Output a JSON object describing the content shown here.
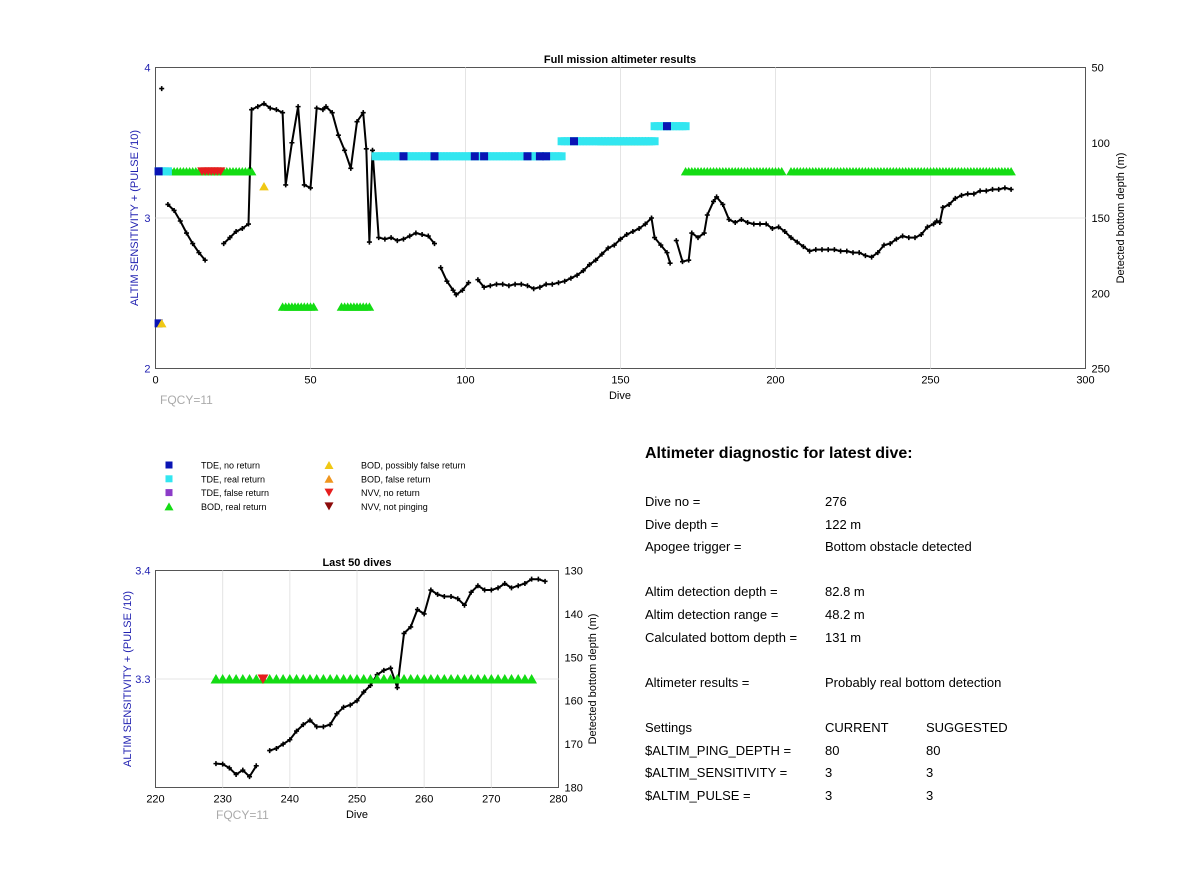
{
  "main_chart": {
    "title": "Full mission altimeter results",
    "xlabel": "Dive",
    "ylabel_left": "ALTIM SENSITIVITY + (PULSE /10)",
    "ylabel_right": "Detected bottom depth (m)",
    "fqcy": "FQCY=11",
    "x_ticks": [
      "0",
      "50",
      "100",
      "150",
      "200",
      "250",
      "300"
    ],
    "y_left_ticks": [
      "2",
      "3",
      "4"
    ],
    "y_right_ticks": [
      "50",
      "100",
      "150",
      "200",
      "250"
    ]
  },
  "zoom_chart": {
    "title": "Last 50 dives",
    "xlabel": "Dive",
    "ylabel_left": "ALTIM SENSITIVITY + (PULSE /10)",
    "ylabel_right": "Detected bottom depth (m)",
    "fqcy": "FQCY=11",
    "x_ticks": [
      "220",
      "230",
      "240",
      "250",
      "260",
      "270",
      "280"
    ],
    "y_left_ticks": [
      "3.3",
      "3.4"
    ],
    "y_right_ticks": [
      "130",
      "140",
      "150",
      "160",
      "170",
      "180"
    ]
  },
  "legend": [
    {
      "label": "TDE, no return",
      "marker": "square",
      "color": "#0a14b4"
    },
    {
      "label": "TDE, real return",
      "marker": "square",
      "color": "#32e6f0"
    },
    {
      "label": "TDE, false return",
      "marker": "square",
      "color": "#8c3cc8"
    },
    {
      "label": "BOD, real return",
      "marker": "triangle-up",
      "color": "#14dc14"
    },
    {
      "label": "BOD, possibly false return",
      "marker": "triangle-up",
      "color": "#f0c814"
    },
    {
      "label": "BOD, false return",
      "marker": "triangle-up",
      "color": "#f0961e"
    },
    {
      "label": "NVV, no return",
      "marker": "triangle-down",
      "color": "#e61e1e"
    },
    {
      "label": "NVV, not pinging",
      "marker": "triangle-down",
      "color": "#8c0a0a"
    }
  ],
  "diagnostic": {
    "heading": "Altimeter diagnostic for latest dive:",
    "dive_no_label": "Dive no =",
    "dive_no": "276",
    "dive_depth_label": "Dive depth =",
    "dive_depth": "122 m",
    "apogee_label": "Apogee trigger =",
    "apogee": "Bottom obstacle detected",
    "det_depth_label": "Altim detection depth =",
    "det_depth": "82.8 m",
    "det_range_label": "Altim detection range =",
    "det_range": "48.2 m",
    "calc_depth_label": "Calculated bottom depth =",
    "calc_depth": "131 m",
    "results_label": "Altimeter results =",
    "results": "Probably real bottom detection",
    "settings_label": "Settings",
    "current_label": "CURRENT",
    "suggested_label": "SUGGESTED",
    "ping_label": "$ALTIM_PING_DEPTH =",
    "ping_current": "80",
    "ping_suggested": "80",
    "sens_label": "$ALTIM_SENSITIVITY =",
    "sens_current": "3",
    "sens_suggested": "3",
    "pulse_label": "$ALTIM_PULSE =",
    "pulse_current": "3",
    "pulse_suggested": "3"
  },
  "chart_data": [
    {
      "type": "line",
      "title": "Full mission altimeter results",
      "xlabel": "Dive",
      "ylabel": "ALTIM SENSITIVITY + (PULSE /10)",
      "ylabel_right": "Detected bottom depth (m)",
      "xlim": [
        0,
        300
      ],
      "ylim": [
        2,
        4
      ],
      "ylim_right": [
        250,
        50
      ],
      "grid": true,
      "depth_series": {
        "name": "Detected bottom depth (m)",
        "segments": [
          [
            [
              2,
              64
            ]
          ],
          [
            [
              4,
              141
            ],
            [
              6,
              145
            ],
            [
              8,
              152
            ],
            [
              10,
              160
            ],
            [
              12,
              167
            ],
            [
              14,
              173
            ],
            [
              16,
              178
            ]
          ],
          [
            [
              22,
              167
            ],
            [
              24,
              163
            ],
            [
              26,
              159
            ],
            [
              28,
              157
            ],
            [
              30,
              154
            ],
            [
              31,
              78
            ],
            [
              33,
              76
            ],
            [
              35,
              74
            ],
            [
              37,
              77
            ],
            [
              39,
              78
            ],
            [
              41,
              80
            ],
            [
              42,
              128
            ],
            [
              44,
              100
            ],
            [
              46,
              76
            ],
            [
              48,
              128
            ],
            [
              50,
              130
            ],
            [
              52,
              77
            ],
            [
              54,
              78
            ],
            [
              55,
              76
            ],
            [
              57,
              80
            ],
            [
              59,
              95
            ],
            [
              61,
              105
            ],
            [
              63,
              117
            ],
            [
              65,
              86
            ],
            [
              67,
              80
            ],
            [
              68,
              104
            ],
            [
              69,
              166
            ],
            [
              70,
              105
            ],
            [
              72,
              163
            ],
            [
              74,
              164
            ],
            [
              76,
              163
            ],
            [
              78,
              165
            ],
            [
              80,
              164
            ],
            [
              82,
              162
            ],
            [
              84,
              160
            ],
            [
              86,
              161
            ],
            [
              88,
              162
            ],
            [
              90,
              167
            ]
          ],
          [
            [
              92,
              183
            ],
            [
              94,
              192
            ],
            [
              96,
              198
            ],
            [
              97,
              201
            ],
            [
              99,
              198
            ],
            [
              101,
              193
            ]
          ],
          [
            [
              104,
              191
            ],
            [
              106,
              196
            ],
            [
              108,
              195
            ],
            [
              110,
              194
            ],
            [
              112,
              194
            ],
            [
              114,
              195
            ],
            [
              116,
              194
            ],
            [
              118,
              194
            ],
            [
              120,
              195
            ],
            [
              122,
              197
            ],
            [
              124,
              196
            ],
            [
              126,
              194
            ],
            [
              128,
              194
            ],
            [
              130,
              193
            ],
            [
              132,
              192
            ],
            [
              134,
              190
            ],
            [
              136,
              188
            ],
            [
              138,
              185
            ],
            [
              140,
              181
            ],
            [
              142,
              178
            ],
            [
              144,
              174
            ],
            [
              146,
              170
            ],
            [
              148,
              168
            ],
            [
              150,
              164
            ],
            [
              152,
              161
            ],
            [
              154,
              159
            ],
            [
              156,
              157
            ],
            [
              158,
              154
            ],
            [
              160,
              150
            ],
            [
              161,
              163
            ],
            [
              163,
              168
            ],
            [
              165,
              173
            ],
            [
              166,
              180
            ]
          ],
          [
            [
              168,
              165
            ],
            [
              170,
              179
            ],
            [
              172,
              178
            ],
            [
              173,
              160
            ],
            [
              175,
              163
            ],
            [
              177,
              160
            ],
            [
              178,
              148
            ],
            [
              180,
              139
            ],
            [
              181,
              136
            ],
            [
              183,
              141
            ],
            [
              185,
              151
            ],
            [
              187,
              153
            ],
            [
              189,
              151
            ],
            [
              191,
              153
            ],
            [
              193,
              154
            ],
            [
              195,
              154
            ],
            [
              197,
              154
            ],
            [
              199,
              157
            ],
            [
              201,
              156
            ],
            [
              203,
              159
            ],
            [
              205,
              163
            ],
            [
              207,
              166
            ],
            [
              209,
              169
            ],
            [
              211,
              172
            ],
            [
              213,
              171
            ],
            [
              215,
              171
            ],
            [
              217,
              171
            ],
            [
              219,
              171
            ],
            [
              221,
              172
            ],
            [
              223,
              172
            ],
            [
              225,
              173
            ],
            [
              227,
              173
            ],
            [
              229,
              175
            ],
            [
              231,
              176
            ],
            [
              233,
              173
            ],
            [
              235,
              168
            ],
            [
              237,
              167
            ],
            [
              239,
              164
            ],
            [
              241,
              162
            ],
            [
              243,
              163
            ],
            [
              245,
              163
            ],
            [
              247,
              161
            ],
            [
              249,
              156
            ],
            [
              251,
              154
            ],
            [
              252,
              152
            ],
            [
              253,
              153
            ],
            [
              254,
              143
            ],
            [
              256,
              141
            ],
            [
              258,
              137
            ],
            [
              260,
              135
            ],
            [
              262,
              134
            ],
            [
              264,
              134
            ],
            [
              266,
              132
            ],
            [
              268,
              132
            ],
            [
              270,
              131
            ],
            [
              272,
              131
            ],
            [
              274,
              130
            ],
            [
              276,
              131
            ]
          ]
        ]
      },
      "altimeter_markers": [
        {
          "name": "TDE, no return",
          "x": [
            1
          ],
          "y": [
            2.3
          ]
        },
        {
          "name": "BOD, possibly false return",
          "x": [
            2,
            35
          ],
          "y": [
            2.3,
            3.21
          ]
        },
        {
          "name": "BOD, real return",
          "x_range": [
            [
              5,
              31
            ],
            [
              41,
              51
            ],
            [
              60,
              69
            ],
            [
              144,
              159
            ],
            [
              171,
              202
            ],
            [
              205,
              276
            ]
          ],
          "y": [
            3.31,
            2.41,
            2.41,
            3.51,
            3.31,
            3.31
          ]
        },
        {
          "name": "NVV, no return",
          "x_range": [
            [
              15,
              21
            ]
          ],
          "y": [
            3.31
          ]
        },
        {
          "name": "TDE, real return",
          "x_range": [
            [
              1,
              4
            ],
            [
              71,
              131
            ],
            [
              131,
              161
            ],
            [
              161,
              171
            ]
          ],
          "y": [
            3.31,
            3.41,
            3.51,
            3.61
          ]
        },
        {
          "name": "TDE, no return",
          "x": [
            1,
            80,
            90,
            103,
            106,
            120,
            124,
            126,
            135,
            165
          ],
          "y": [
            3.31,
            3.41,
            3.41,
            3.41,
            3.41,
            3.41,
            3.41,
            3.41,
            3.51,
            3.61
          ]
        }
      ]
    },
    {
      "type": "line",
      "title": "Last 50 dives",
      "xlabel": "Dive",
      "ylabel": "ALTIM SENSITIVITY + (PULSE /10)",
      "ylabel_right": "Detected bottom depth (m)",
      "xlim": [
        220,
        280
      ],
      "ylim": [
        3.2,
        3.4
      ],
      "ylim_right": [
        180,
        130
      ],
      "grid": true,
      "depth_series": {
        "name": "Detected bottom depth (m)",
        "segments": [
          [
            [
              229,
              174.5
            ],
            [
              230,
              174.6
            ],
            [
              231,
              175.5
            ],
            [
              232,
              177
            ],
            [
              233,
              176
            ],
            [
              234,
              177.5
            ],
            [
              235,
              175
            ]
          ],
          [
            [
              237,
              171.5
            ],
            [
              238,
              171
            ],
            [
              239,
              170
            ],
            [
              240,
              169
            ],
            [
              241,
              167
            ],
            [
              242,
              165.5
            ],
            [
              243,
              164.5
            ],
            [
              244,
              166
            ],
            [
              245,
              166
            ],
            [
              246,
              165.5
            ],
            [
              247,
              163
            ],
            [
              248,
              161.5
            ],
            [
              249,
              161
            ],
            [
              250,
              160
            ],
            [
              251,
              158
            ],
            [
              252,
              156.5
            ],
            [
              253,
              154
            ],
            [
              254,
              153
            ],
            [
              255,
              152.5
            ],
            [
              256,
              157
            ],
            [
              257,
              144.5
            ],
            [
              258,
              143
            ],
            [
              259,
              139
            ],
            [
              260,
              140
            ],
            [
              261,
              134.5
            ],
            [
              262,
              135.5
            ],
            [
              263,
              136
            ],
            [
              264,
              136
            ],
            [
              265,
              136.5
            ],
            [
              266,
              138
            ],
            [
              267,
              135
            ],
            [
              268,
              133.5
            ],
            [
              269,
              134.5
            ],
            [
              270,
              134.5
            ],
            [
              271,
              134
            ],
            [
              272,
              133
            ],
            [
              273,
              134
            ],
            [
              274,
              133.5
            ],
            [
              275,
              133
            ],
            [
              276,
              132
            ],
            [
              277,
              132
            ],
            [
              278,
              132.5
            ]
          ]
        ]
      },
      "altimeter_markers": [
        {
          "name": "BOD, real return",
          "x_range": [
            [
              229,
              276
            ]
          ],
          "y": [
            3.3
          ]
        },
        {
          "name": "NVV, no return",
          "x": [
            236
          ],
          "y": [
            3.3
          ]
        }
      ]
    }
  ]
}
